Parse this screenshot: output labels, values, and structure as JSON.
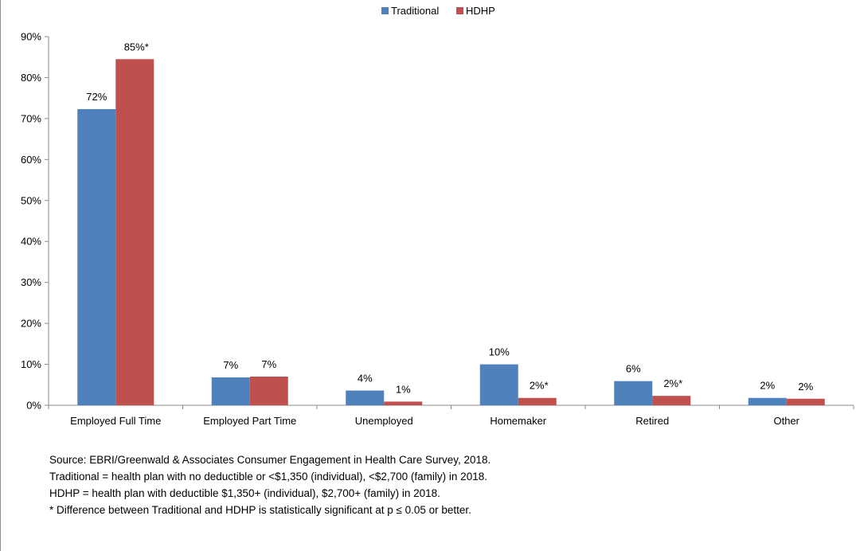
{
  "chart_data": {
    "type": "bar",
    "categories": [
      "Employed Full Time",
      "Employed Part Time",
      "Unemployed",
      "Homemaker",
      "Retired",
      "Other"
    ],
    "series": [
      {
        "name": "Traditional",
        "color": "#4f81bd",
        "values": [
          72.3,
          6.8,
          3.6,
          10.0,
          5.9,
          1.8
        ],
        "labels": [
          "72%",
          "7%",
          "4%",
          "10%",
          "6%",
          "2%"
        ]
      },
      {
        "name": "HDHP",
        "color": "#c0504d",
        "values": [
          84.5,
          7.0,
          0.9,
          1.8,
          2.3,
          1.6
        ],
        "labels": [
          "85%*",
          "7%",
          "1%",
          "2%*",
          "2%*",
          "2%"
        ]
      }
    ],
    "y_ticks": [
      "0%",
      "10%",
      "20%",
      "30%",
      "40%",
      "50%",
      "60%",
      "70%",
      "80%",
      "90%"
    ],
    "ylim": [
      0,
      90
    ],
    "legend_position": "top-center",
    "grid": false
  },
  "notes": {
    "source": "Source: EBRI/Greenwald & Associates Consumer Engagement in Health Care Survey, 2018.",
    "traditional_def": "Traditional = health plan with no deductible or <$1,350 (individual), <$2,700 (family) in 2018.",
    "hdhp_def": "HDHP = health plan with deductible $1,350+ (individual), $2,700+ (family) in 2018.",
    "significance": "* Difference between Traditional and HDHP is statistically significant at p ≤ 0.05 or better."
  }
}
